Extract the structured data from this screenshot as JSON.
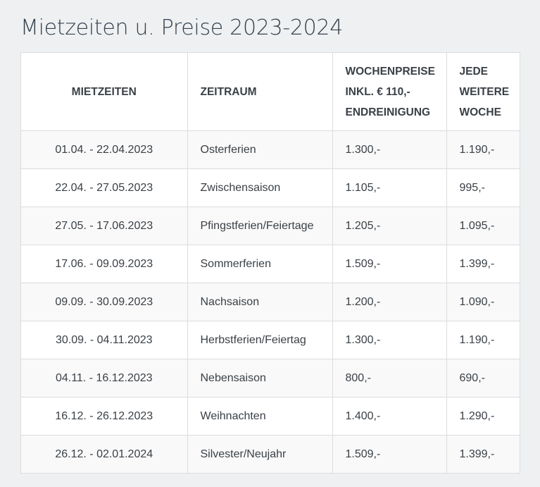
{
  "title": "Mietzeiten u. Preise 2023-2024",
  "table": {
    "headers": {
      "col1": "MIETZEITEN",
      "col2": "ZEITRAUM",
      "col3_lines": [
        "WOCHENPREISE",
        "INKL. € 110,-",
        "ENDREINIGUNG"
      ],
      "col4_lines": [
        "JEDE",
        "WEITERE",
        "WOCHE"
      ]
    },
    "rows": [
      {
        "dates": "01.04. - 22.04.2023",
        "period": "Osterferien",
        "weekly": "1.300,-",
        "extra": "1.190,-"
      },
      {
        "dates": "22.04. - 27.05.2023",
        "period": "Zwischensaison",
        "weekly": "1.105,-",
        "extra": "995,-"
      },
      {
        "dates": "27.05. - 17.06.2023",
        "period": "Pfingstferien/Feiertage",
        "weekly": "1.205,-",
        "extra": "1.095,-"
      },
      {
        "dates": "17.06. - 09.09.2023",
        "period": "Sommerferien",
        "weekly": "1.509,-",
        "extra": "1.399,-"
      },
      {
        "dates": "09.09. - 30.09.2023",
        "period": "Nachsaison",
        "weekly": "1.200,-",
        "extra": "1.090,-"
      },
      {
        "dates": "30.09. - 04.11.2023",
        "period": "Herbstferien/Feiertag",
        "weekly": "1.300,-",
        "extra": "1.190,-"
      },
      {
        "dates": "04.11. - 16.12.2023",
        "period": "Nebensaison",
        "weekly": "800,-",
        "extra": "690,-"
      },
      {
        "dates": "16.12. - 26.12.2023",
        "period": "Weihnachten",
        "weekly": "1.400,-",
        "extra": "1.290,-"
      },
      {
        "dates": "26.12. - 02.01.2024",
        "period": "Silvester/Neujahr",
        "weekly": "1.509,-",
        "extra": "1.399,-"
      }
    ]
  }
}
